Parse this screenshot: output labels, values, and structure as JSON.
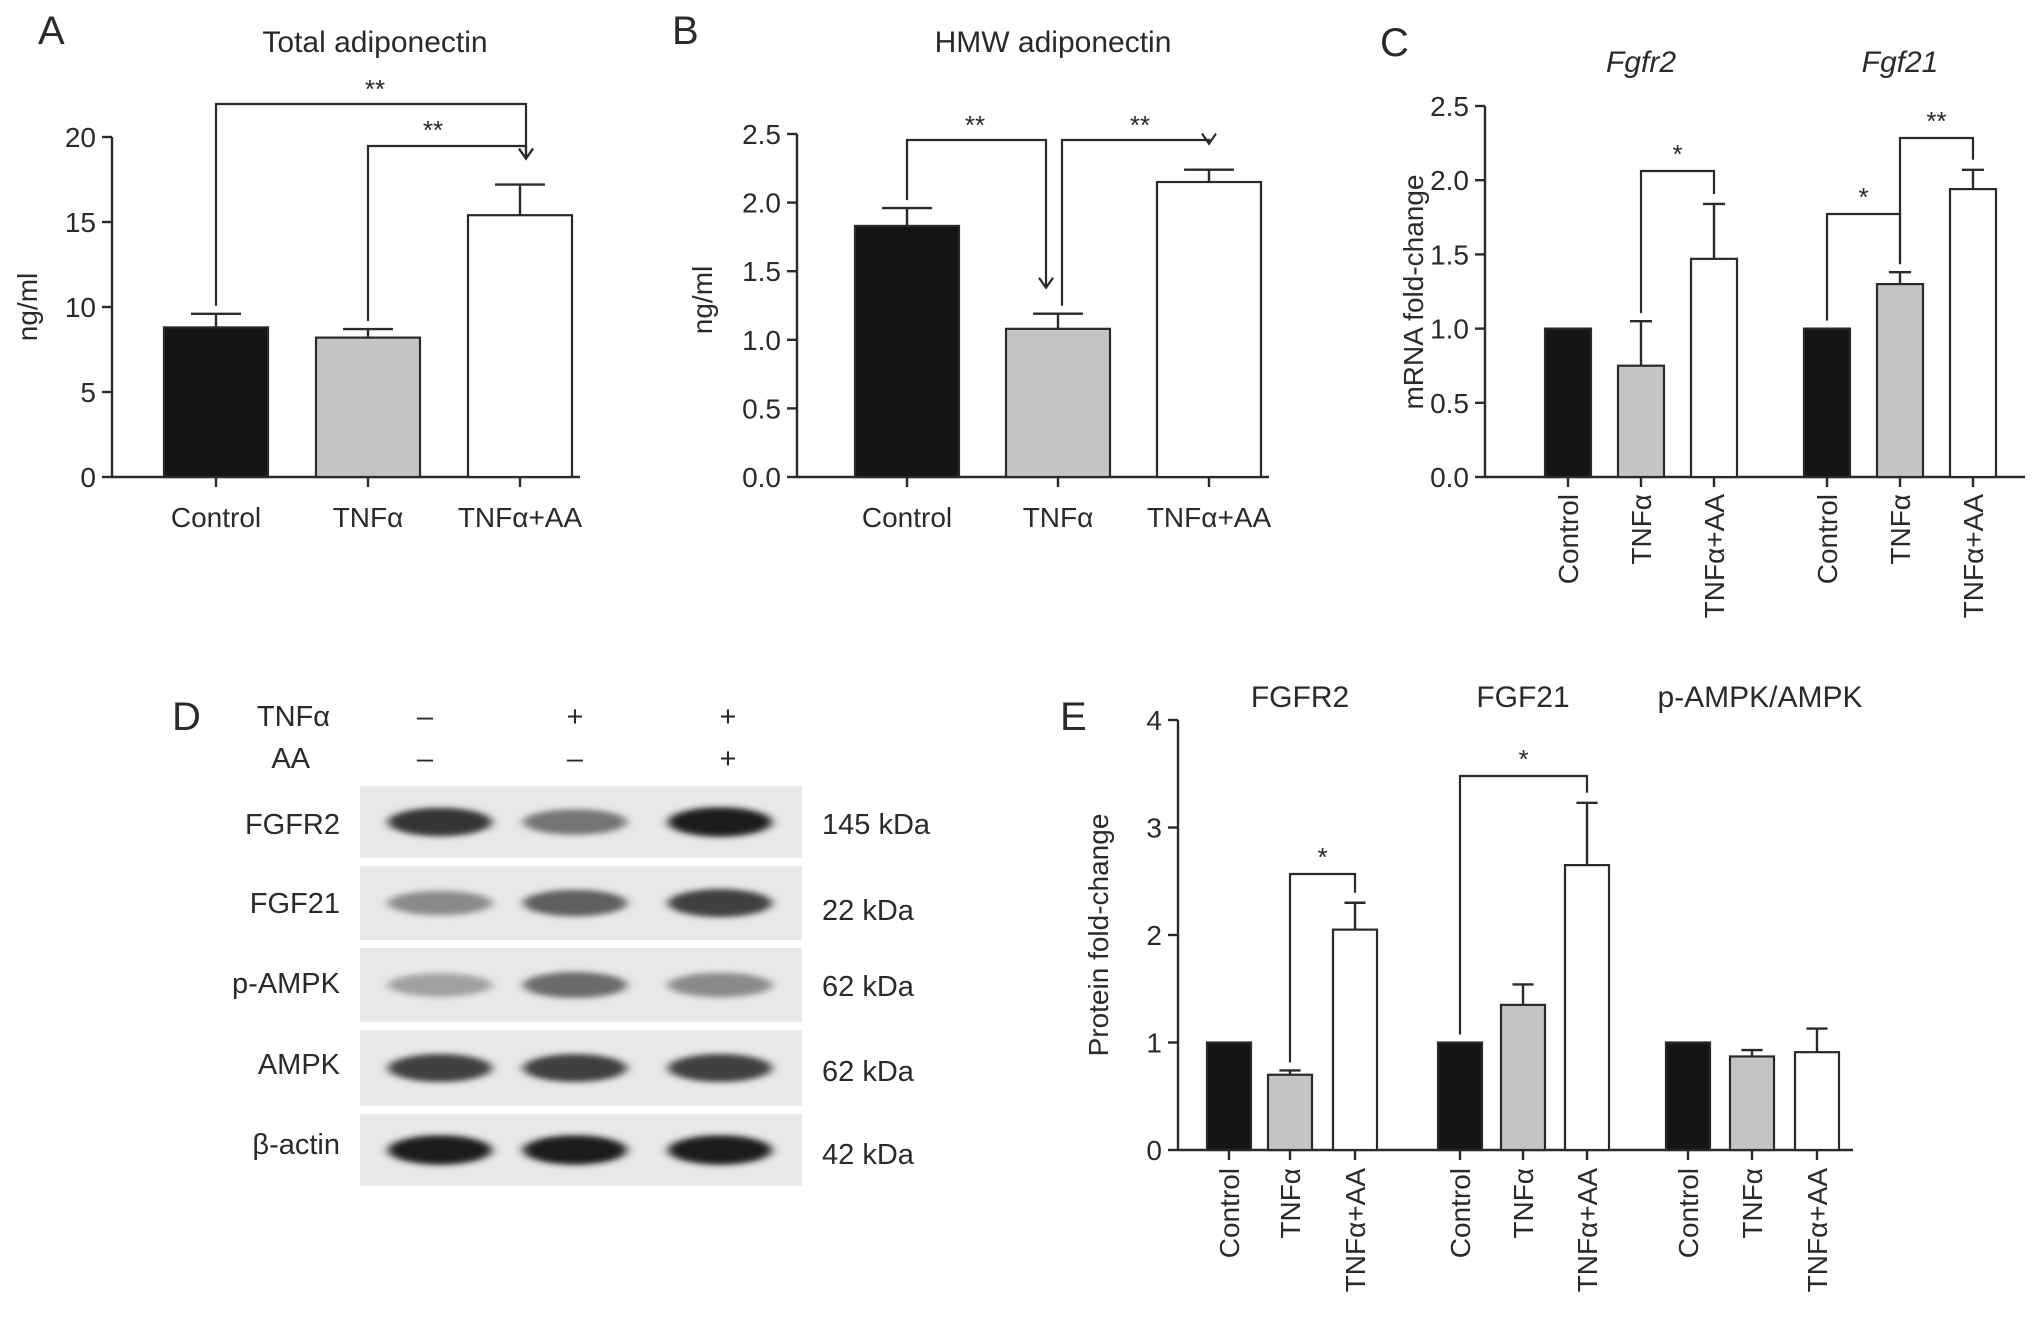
{
  "colors": {
    "control": "#151515",
    "tnfa": "#c4c4c4",
    "tnfa_aa": "#ffffff",
    "axis": "#2a2a2a"
  },
  "panels": {
    "a": {
      "letter": "A"
    },
    "b": {
      "letter": "B"
    },
    "c": {
      "letter": "C"
    },
    "d": {
      "letter": "D"
    },
    "e": {
      "letter": "E"
    }
  },
  "chart_data": [
    {
      "panel": "A",
      "type": "bar",
      "title": "Total adiponectin",
      "ylabel": "ng/ml",
      "ylim": [
        0,
        20
      ],
      "yticks": [
        "0",
        "5",
        "10",
        "15",
        "20"
      ],
      "categories": [
        "Control",
        "TNFα",
        "TNFα+AA"
      ],
      "values": [
        8.8,
        8.2,
        15.4
      ],
      "errors": [
        0.8,
        0.5,
        1.8
      ],
      "significance": [
        {
          "from": "Control",
          "to": "TNFα+AA",
          "label": "**"
        },
        {
          "from": "TNFα",
          "to": "TNFα+AA",
          "label": "**"
        }
      ]
    },
    {
      "panel": "B",
      "type": "bar",
      "title": "HMW adiponectin",
      "ylabel": "ng/ml",
      "ylim": [
        0,
        2.5
      ],
      "yticks": [
        "0.0",
        "0.5",
        "1.0",
        "1.5",
        "2.0",
        "2.5"
      ],
      "categories": [
        "Control",
        "TNFα",
        "TNFα+AA"
      ],
      "values": [
        1.83,
        1.08,
        2.15
      ],
      "errors": [
        0.13,
        0.11,
        0.09
      ],
      "significance": [
        {
          "from": "Control",
          "to": "TNFα",
          "label": "**"
        },
        {
          "from": "TNFα",
          "to": "TNFα+AA",
          "label": "**"
        }
      ]
    },
    {
      "panel": "C",
      "type": "bar",
      "ylabel": "mRNA fold-change",
      "ylim": [
        0,
        2.5
      ],
      "yticks": [
        "0.0",
        "0.5",
        "1.0",
        "1.5",
        "2.0",
        "2.5"
      ],
      "categories": [
        "Control",
        "TNFα",
        "TNFα+AA"
      ],
      "groups": [
        {
          "name": "Fgfr2",
          "values": [
            1.0,
            0.75,
            1.47
          ],
          "errors": [
            0,
            0.3,
            0.37
          ]
        },
        {
          "name": "Fgf21",
          "values": [
            1.0,
            1.3,
            1.94
          ],
          "errors": [
            0,
            0.08,
            0.13
          ]
        }
      ],
      "significance": [
        {
          "group": "Fgfr2",
          "from": "TNFα",
          "to": "TNFα+AA",
          "label": "*"
        },
        {
          "group": "Fgf21",
          "from": "Control",
          "to": "TNFα",
          "label": "*"
        },
        {
          "group": "Fgf21",
          "from": "TNFα",
          "to": "TNFα+AA",
          "label": "**"
        }
      ]
    },
    {
      "panel": "E",
      "type": "bar",
      "ylabel": "Protein fold-change",
      "ylim": [
        0,
        4
      ],
      "yticks": [
        "0",
        "1",
        "2",
        "3",
        "4"
      ],
      "categories": [
        "Control",
        "TNFα",
        "TNFα+AA"
      ],
      "groups": [
        {
          "name": "FGFR2",
          "values": [
            1.0,
            0.7,
            2.05
          ],
          "errors": [
            0,
            0.04,
            0.25
          ]
        },
        {
          "name": "FGF21",
          "values": [
            1.0,
            1.35,
            2.65
          ],
          "errors": [
            0,
            0.19,
            0.58
          ]
        },
        {
          "name": "p-AMPK/AMPK",
          "values": [
            1.0,
            0.87,
            0.91
          ],
          "errors": [
            0,
            0.06,
            0.22
          ]
        }
      ],
      "significance": [
        {
          "group": "FGFR2",
          "from": "TNFα",
          "to": "TNFα+AA",
          "label": "*"
        },
        {
          "group": "FGF21",
          "from": "Control",
          "to": "TNFα+AA",
          "label": "*"
        }
      ]
    }
  ],
  "western_blot": {
    "conditions": [
      {
        "label": "TNFα",
        "signs": [
          "–",
          "+",
          "+"
        ]
      },
      {
        "label": "AA",
        "signs": [
          "–",
          "–",
          "+"
        ]
      }
    ],
    "bands": [
      {
        "protein": "FGFR2",
        "size": "145 kDa"
      },
      {
        "protein": "FGF21",
        "size": "22 kDa"
      },
      {
        "protein": "p-AMPK",
        "size": "62 kDa"
      },
      {
        "protein": "AMPK",
        "size": "62 kDa"
      },
      {
        "protein": "β-actin",
        "size": "42 kDa"
      }
    ],
    "band_intensity": [
      [
        0.85,
        0.55,
        0.95
      ],
      [
        0.45,
        0.65,
        0.8
      ],
      [
        0.35,
        0.6,
        0.45
      ],
      [
        0.8,
        0.8,
        0.8
      ],
      [
        0.95,
        0.95,
        0.95
      ]
    ]
  }
}
